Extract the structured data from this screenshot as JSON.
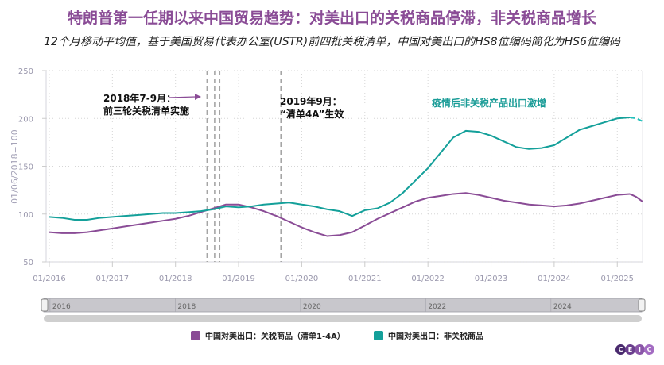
{
  "header": {
    "title": "特朗普第一任期以来中国贸易趋势：对美出口的关税商品停滞，非关税商品增长",
    "subtitle": "12个月移动平均值，基于美国贸易代表办公室(USTR)前四批关税清单，中国对美出口的HS8位编码简化为HS6位编码"
  },
  "colors": {
    "tariffed": "#8a4c96",
    "non_tariffed": "#14a09a",
    "title": "#8a4c96"
  },
  "annotations": {
    "a1_line1": "2018年7-9月：",
    "a1_line2": "前三轮关税清单实施",
    "a2_line1": "2019年9月：",
    "a2_line2": "“清单4A”生效",
    "a3": "疫情后非关税产品出口激增"
  },
  "navigator": {
    "labels": [
      "2016",
      "2018",
      "2020",
      "2022",
      "2024"
    ]
  },
  "legend": {
    "tariffed": "中国对美出口：关税商品（清单1-4A）",
    "non_tariffed": "中国对美出口：非关税商品"
  },
  "brand": {
    "letters": [
      "C",
      "E",
      "I",
      "C"
    ]
  },
  "chart_data": {
    "type": "line",
    "title": "特朗普第一任期以来中国贸易趋势：对美出口的关税商品停滞，非关税商品增长",
    "xlabel": "",
    "ylabel": "01/06/2018=100",
    "ylim": [
      50,
      250
    ],
    "yticks": [
      50,
      100,
      150,
      200,
      250
    ],
    "xticks": [
      "01/2016",
      "01/2017",
      "01/2018",
      "01/2019",
      "01/2020",
      "01/2021",
      "01/2022",
      "01/2023",
      "01/2024",
      "01/2025"
    ],
    "xlim": [
      2015.95,
      2025.4
    ],
    "grid": true,
    "legend_position": "bottom",
    "vlines": [
      2018.5,
      2018.62,
      2018.7,
      2019.67
    ],
    "x": [
      2016.0,
      2016.2,
      2016.4,
      2016.6,
      2016.8,
      2017.0,
      2017.2,
      2017.4,
      2017.6,
      2017.8,
      2018.0,
      2018.2,
      2018.4,
      2018.6,
      2018.8,
      2019.0,
      2019.2,
      2019.4,
      2019.6,
      2019.8,
      2020.0,
      2020.2,
      2020.4,
      2020.6,
      2020.8,
      2021.0,
      2021.2,
      2021.4,
      2021.6,
      2021.8,
      2022.0,
      2022.2,
      2022.4,
      2022.6,
      2022.8,
      2023.0,
      2023.2,
      2023.4,
      2023.6,
      2023.8,
      2024.0,
      2024.2,
      2024.4,
      2024.6,
      2024.8,
      2025.0,
      2025.2,
      2025.3,
      2025.4
    ],
    "series": [
      {
        "name": "中国对美出口：关税商品（清单1-4A）",
        "values": [
          81,
          80,
          80,
          81,
          83,
          85,
          87,
          89,
          91,
          93,
          95,
          98,
          102,
          106,
          110,
          110,
          107,
          103,
          98,
          92,
          86,
          81,
          77,
          78,
          81,
          88,
          95,
          101,
          107,
          113,
          117,
          119,
          121,
          122,
          120,
          117,
          114,
          112,
          110,
          109,
          108,
          109,
          111,
          114,
          117,
          120,
          121,
          118,
          113
        ]
      },
      {
        "name": "中国对美出口：非关税商品",
        "values": [
          97,
          96,
          94,
          94,
          96,
          97,
          98,
          99,
          100,
          101,
          101,
          102,
          103,
          105,
          108,
          107,
          108,
          110,
          111,
          112,
          110,
          108,
          105,
          103,
          98,
          104,
          106,
          112,
          122,
          135,
          148,
          164,
          180,
          187,
          186,
          182,
          176,
          170,
          168,
          169,
          172,
          180,
          188,
          192,
          196,
          200,
          201,
          200,
          197
        ]
      }
    ]
  }
}
